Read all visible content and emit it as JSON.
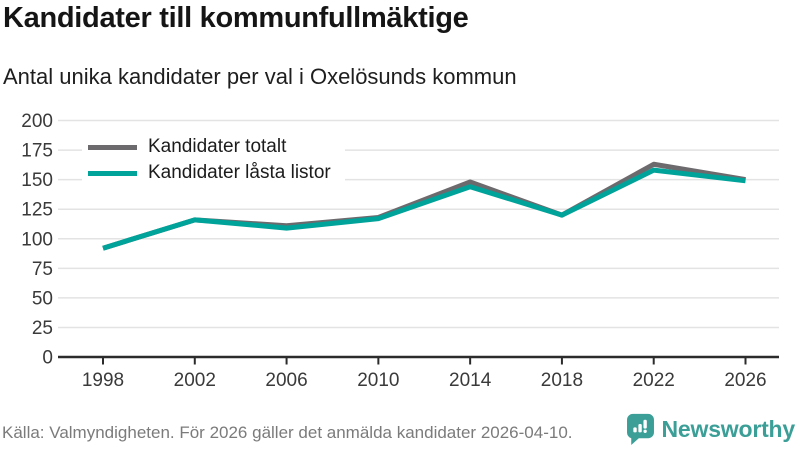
{
  "chart_data": {
    "type": "line",
    "title": "Kandidater till kommunfullmäktige",
    "subtitle": "Antal unika kandidater per val i Oxelösunds kommun",
    "categories": [
      "1998",
      "2002",
      "2006",
      "2010",
      "2014",
      "2018",
      "2022",
      "2026"
    ],
    "series": [
      {
        "name": "Kandidater totalt",
        "color": "#6d6a6e",
        "values": [
          92,
          116,
          111,
          118,
          148,
          120,
          163,
          150
        ]
      },
      {
        "name": "Kandidater låsta listor",
        "color": "#00a39a",
        "values": [
          92,
          116,
          109,
          117,
          144,
          120,
          158,
          149
        ]
      }
    ],
    "xlabel": "",
    "ylabel": "",
    "ylim": [
      0,
      200
    ],
    "yticks": [
      0,
      25,
      50,
      75,
      100,
      125,
      150,
      175,
      200
    ],
    "grid": "horizontal",
    "legend_position": "top-left"
  },
  "footer": {
    "source": "Källa: Valmyndigheten. För 2026 gäller det anmälda kandidater 2026-04-10.",
    "brand": "Newsworthy"
  },
  "colors": {
    "grid": "#e3e3e3",
    "axis": "#2b2b2b",
    "tick_label": "#3a3a3a",
    "brand_teal": "#3c9f97"
  }
}
